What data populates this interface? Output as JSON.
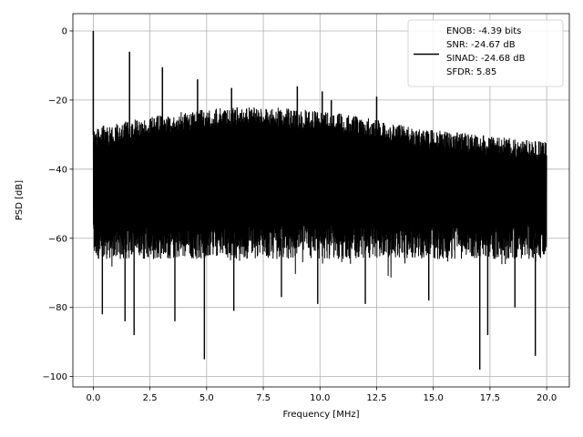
{
  "chart_data": {
    "type": "line",
    "title": "",
    "xlabel": "Frequency [MHz]",
    "ylabel": "PSD [dB]",
    "xlim": [
      -0.9,
      21.0
    ],
    "ylim": [
      -103.0,
      5.0
    ],
    "xticks": [
      0.0,
      2.5,
      5.0,
      7.5,
      10.0,
      12.5,
      15.0,
      17.5,
      20.0
    ],
    "xtick_labels": [
      "0.0",
      "2.5",
      "5.0",
      "7.5",
      "10.0",
      "12.5",
      "15.0",
      "17.5",
      "20.0"
    ],
    "yticks": [
      0,
      -20,
      -40,
      -60,
      -80,
      -100
    ],
    "ytick_labels": [
      "0",
      "−20",
      "−40",
      "−60",
      "−80",
      "−100"
    ],
    "grid": true,
    "legend_position": "top-right",
    "series": [
      {
        "color": "#000000",
        "noise_band": {
          "upper_start": -28,
          "upper_end": -26,
          "upper_mid": -22,
          "lower": -66
        },
        "peaks": [
          {
            "x": 0.0,
            "y": 0.0
          },
          {
            "x": 1.6,
            "y": -6.0
          },
          {
            "x": 3.05,
            "y": -10.5
          },
          {
            "x": 4.6,
            "y": -14.0
          },
          {
            "x": 6.1,
            "y": -16.5
          },
          {
            "x": 9.0,
            "y": -16.0
          },
          {
            "x": 10.1,
            "y": -17.5
          },
          {
            "x": 10.5,
            "y": -20.0
          },
          {
            "x": 12.5,
            "y": -19.0
          }
        ],
        "dips": [
          {
            "x": 0.4,
            "y": -82.0
          },
          {
            "x": 1.4,
            "y": -84.0
          },
          {
            "x": 1.8,
            "y": -88.0
          },
          {
            "x": 3.6,
            "y": -84.0
          },
          {
            "x": 4.9,
            "y": -95.0
          },
          {
            "x": 6.2,
            "y": -81.0
          },
          {
            "x": 8.3,
            "y": -77.0
          },
          {
            "x": 9.9,
            "y": -79.0
          },
          {
            "x": 12.0,
            "y": -79.0
          },
          {
            "x": 14.8,
            "y": -78.0
          },
          {
            "x": 17.05,
            "y": -98.0
          },
          {
            "x": 17.4,
            "y": -88.0
          },
          {
            "x": 18.6,
            "y": -80.0
          },
          {
            "x": 19.5,
            "y": -94.0
          }
        ]
      }
    ]
  },
  "legend": {
    "lines": [
      "ENOB: -4.39 bits",
      "SNR: -24.67 dB",
      "SINAD: -24.68 dB",
      "SFDR: 5.85"
    ]
  }
}
